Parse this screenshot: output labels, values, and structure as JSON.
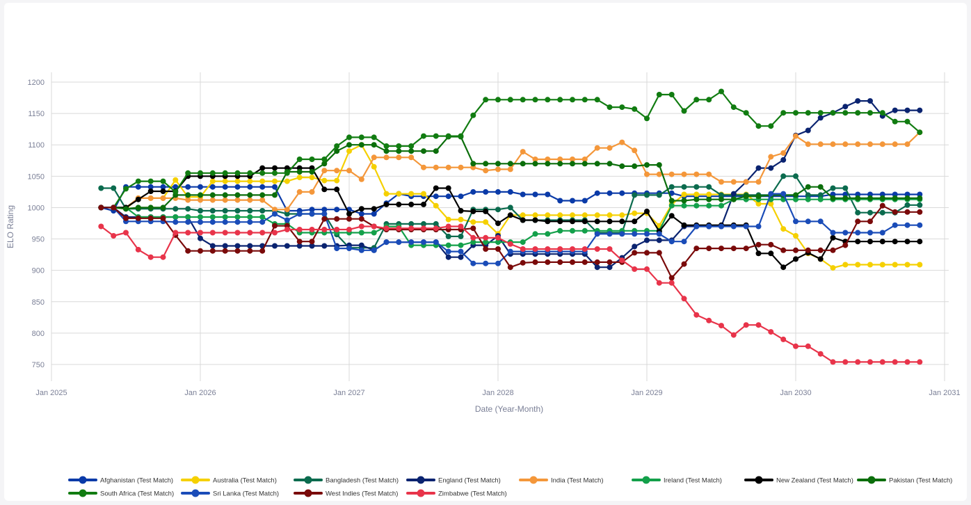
{
  "chart_data": {
    "type": "line",
    "xlabel": "Date (Year-Month)",
    "ylabel": "ELO Rating",
    "ylim": [
      725,
      1210
    ],
    "yticks": [
      750,
      800,
      850,
      900,
      950,
      1000,
      1050,
      1100,
      1150,
      1200
    ],
    "xticks": [
      {
        "label": "Jan 2025",
        "date": "2025-01"
      },
      {
        "label": "Jan 2026",
        "date": "2026-01"
      },
      {
        "label": "Jan 2027",
        "date": "2027-01"
      },
      {
        "label": "Jan 2028",
        "date": "2028-01"
      },
      {
        "label": "Jan 2029",
        "date": "2029-01"
      },
      {
        "label": "Jan 2030",
        "date": "2030-01"
      },
      {
        "label": "Jan 2031",
        "date": "2031-01"
      }
    ],
    "grid": true,
    "legend_position": "bottom",
    "x": [
      "2025-05",
      "2025-06",
      "2025-07",
      "2025-08",
      "2025-09",
      "2025-10",
      "2025-11",
      "2025-12",
      "2026-01",
      "2026-02",
      "2026-03",
      "2026-04",
      "2026-05",
      "2026-06",
      "2026-07",
      "2026-08",
      "2026-09",
      "2026-10",
      "2026-11",
      "2026-12",
      "2027-01",
      "2027-02",
      "2027-03",
      "2027-04",
      "2027-05",
      "2027-06",
      "2027-07",
      "2027-08",
      "2027-09",
      "2027-10",
      "2027-11",
      "2027-12",
      "2028-01",
      "2028-02",
      "2028-03",
      "2028-04",
      "2028-05",
      "2028-06",
      "2028-07",
      "2028-08",
      "2028-09",
      "2028-10",
      "2028-11",
      "2028-12",
      "2029-01",
      "2029-02",
      "2029-03",
      "2029-04",
      "2029-05",
      "2029-06",
      "2029-07",
      "2029-08",
      "2029-09",
      "2029-10",
      "2029-11",
      "2029-12",
      "2030-01",
      "2030-02",
      "2030-03",
      "2030-04",
      "2030-05",
      "2030-06",
      "2030-07",
      "2030-08",
      "2030-09",
      "2030-10",
      "2030-11"
    ],
    "series": [
      {
        "name": "Afghanistan (Test Match)",
        "color": "#0a3aa8",
        "values": [
          1000,
          995,
          1033,
          1033,
          1033,
          1033,
          1033,
          1033,
          1033,
          1033,
          1033,
          1033,
          1033,
          1033,
          1033,
          995,
          995,
          997,
          997,
          997,
          997,
          990,
          990,
          1007,
          1022,
          1018,
          1018,
          1018,
          1018,
          1018,
          1025,
          1025,
          1025,
          1025,
          1021,
          1021,
          1021,
          1011,
          1011,
          1011,
          1023,
          1023,
          1023,
          1023,
          1023,
          1023,
          1023,
          1018,
          1018,
          1018,
          1018,
          1018,
          1018,
          1018,
          1018,
          1018,
          1018,
          1018,
          1018,
          1021,
          1021,
          1021,
          1021,
          1021,
          1021,
          1021,
          1021
        ]
      },
      {
        "name": "Australia (Test Match)",
        "color": "#f5d000",
        "values": [
          1000,
          1000,
          998,
          1015,
          1015,
          1015,
          1044,
          1017,
          1017,
          1042,
          1042,
          1042,
          1042,
          1042,
          1042,
          1042,
          1048,
          1048,
          1043,
          1043,
          1090,
          1100,
          1065,
          1022,
          1022,
          1022,
          1022,
          1003,
          981,
          981,
          977,
          977,
          958,
          988,
          988,
          988,
          988,
          988,
          988,
          988,
          988,
          988,
          988,
          991,
          991,
          971,
          1005,
          1021,
          1021,
          1021,
          1021,
          1021,
          1021,
          1006,
          1006,
          966,
          955,
          927,
          918,
          904,
          909,
          909,
          909,
          909,
          909,
          909,
          909
        ]
      },
      {
        "name": "Bangladesh (Test Match)",
        "color": "#0b6b4e",
        "values": [
          1031,
          1031,
          998,
          998,
          998,
          998,
          998,
          998,
          995,
          995,
          995,
          995,
          995,
          995,
          995,
          990,
          990,
          990,
          990,
          957,
          936,
          936,
          936,
          974,
          974,
          974,
          974,
          974,
          954,
          954,
          997,
          997,
          997,
          1000,
          980,
          980,
          980,
          980,
          980,
          980,
          960,
          960,
          960,
          1020,
          1020,
          1020,
          1033,
          1033,
          1033,
          1033,
          1020,
          1020,
          1020,
          1020,
          1020,
          1050,
          1050,
          1020,
          1020,
          1031,
          1031,
          992,
          992,
          992,
          992,
          1004,
          1004
        ]
      },
      {
        "name": "England (Test Match)",
        "color": "#0a2370",
        "values": [
          1000,
          1000,
          985,
          985,
          985,
          985,
          985,
          985,
          951,
          939,
          939,
          939,
          939,
          939,
          939,
          939,
          939,
          939,
          939,
          939,
          940,
          940,
          932,
          945,
          945,
          945,
          945,
          945,
          921,
          921,
          940,
          940,
          955,
          926,
          926,
          926,
          926,
          926,
          926,
          926,
          905,
          905,
          920,
          938,
          948,
          948,
          948,
          970,
          970,
          970,
          970,
          1022,
          1041,
          1063,
          1063,
          1076,
          1115,
          1123,
          1143,
          1151,
          1161,
          1170,
          1170,
          1146,
          1155,
          1155,
          1155
        ]
      },
      {
        "name": "India (Test Match)",
        "color": "#f4973a",
        "values": [
          1000,
          1000,
          1000,
          1015,
          1015,
          1015,
          1015,
          1012,
          1012,
          1012,
          1012,
          1012,
          1012,
          1012,
          997,
          997,
          1025,
          1025,
          1059,
          1059,
          1059,
          1045,
          1080,
          1080,
          1080,
          1080,
          1064,
          1064,
          1064,
          1064,
          1064,
          1059,
          1061,
          1061,
          1089,
          1077,
          1077,
          1077,
          1077,
          1077,
          1095,
          1095,
          1104,
          1091,
          1053,
          1053,
          1053,
          1053,
          1053,
          1053,
          1041,
          1041,
          1041,
          1041,
          1081,
          1087,
          1114,
          1101,
          1101,
          1101,
          1101,
          1101,
          1101,
          1101,
          1101,
          1101,
          1120
        ]
      },
      {
        "name": "Ireland (Test Match)",
        "color": "#13a04a",
        "values": [
          1000,
          1000,
          1000,
          985,
          985,
          985,
          985,
          985,
          985,
          985,
          985,
          985,
          985,
          985,
          974,
          974,
          960,
          960,
          960,
          960,
          960,
          960,
          960,
          970,
          970,
          940,
          940,
          940,
          940,
          940,
          945,
          945,
          945,
          945,
          945,
          958,
          958,
          963,
          963,
          963,
          963,
          963,
          963,
          963,
          963,
          963,
          1003,
          1003,
          1003,
          1003,
          1003,
          1013,
          1013,
          1013,
          1013,
          1013,
          1013,
          1013,
          1013,
          1013,
          1013,
          1013,
          1013,
          1013,
          1013,
          1013,
          1013
        ]
      },
      {
        "name": "New Zealand (Test Match)",
        "color": "#000000",
        "values": [
          1000,
          1000,
          1000,
          1013,
          1026,
          1026,
          1026,
          1050,
          1050,
          1050,
          1050,
          1050,
          1050,
          1063,
          1063,
          1063,
          1063,
          1063,
          1029,
          1029,
          990,
          998,
          998,
          1005,
          1005,
          1005,
          1005,
          1031,
          1031,
          995,
          994,
          994,
          975,
          988,
          980,
          980,
          978,
          978,
          978,
          978,
          978,
          978,
          978,
          978,
          994,
          962,
          987,
          972,
          972,
          972,
          972,
          972,
          972,
          927,
          927,
          905,
          918,
          928,
          918,
          952,
          946,
          946,
          946,
          946,
          946,
          946,
          946
        ]
      },
      {
        "name": "Pakistan (Test Match)",
        "color": "#0b6e0b",
        "values": [
          1000,
          1000,
          998,
          1000,
          1000,
          1000,
          1020,
          1020,
          1020,
          1020,
          1020,
          1020,
          1020,
          1020,
          1020,
          1057,
          1057,
          1057,
          1070,
          1090,
          1100,
          1100,
          1100,
          1090,
          1090,
          1090,
          1090,
          1090,
          1113,
          1113,
          1070,
          1070,
          1070,
          1070,
          1070,
          1070,
          1070,
          1070,
          1070,
          1070,
          1070,
          1070,
          1066,
          1066,
          1068,
          1068,
          1011,
          1011,
          1013,
          1013,
          1013,
          1013,
          1018,
          1018,
          1020,
          1020,
          1020,
          1033,
          1033,
          1015,
          1015,
          1015,
          1015,
          1015,
          1015,
          1015,
          1015
        ]
      },
      {
        "name": "South Africa (Test Match)",
        "color": "#117c11",
        "values": [
          1000,
          1000,
          1030,
          1042,
          1042,
          1042,
          1025,
          1055,
          1055,
          1055,
          1055,
          1055,
          1055,
          1055,
          1055,
          1055,
          1077,
          1077,
          1077,
          1098,
          1112,
          1112,
          1112,
          1098,
          1098,
          1098,
          1114,
          1114,
          1114,
          1114,
          1147,
          1172,
          1172,
          1172,
          1172,
          1172,
          1172,
          1172,
          1172,
          1172,
          1172,
          1160,
          1160,
          1157,
          1142,
          1180,
          1180,
          1154,
          1172,
          1172,
          1185,
          1160,
          1151,
          1130,
          1130,
          1151,
          1151,
          1151,
          1151,
          1151,
          1151,
          1151,
          1151,
          1151,
          1137,
          1137,
          1120
        ]
      },
      {
        "name": "Sri Lanka (Test Match)",
        "color": "#1a4cb8",
        "values": [
          1000,
          1000,
          978,
          978,
          978,
          978,
          977,
          977,
          977,
          977,
          977,
          977,
          977,
          977,
          990,
          980,
          990,
          990,
          990,
          935,
          935,
          932,
          932,
          945,
          945,
          945,
          945,
          945,
          930,
          930,
          911,
          911,
          911,
          930,
          930,
          930,
          930,
          930,
          930,
          930,
          958,
          958,
          958,
          958,
          958,
          958,
          946,
          946,
          970,
          970,
          970,
          970,
          970,
          970,
          1022,
          1022,
          978,
          978,
          978,
          960,
          960,
          960,
          960,
          960,
          972,
          972,
          972
        ]
      },
      {
        "name": "West Indies (Test Match)",
        "color": "#7a0a0a",
        "values": [
          1000,
          1000,
          983,
          983,
          983,
          983,
          956,
          931,
          931,
          931,
          931,
          931,
          931,
          931,
          971,
          971,
          946,
          946,
          982,
          982,
          982,
          982,
          970,
          965,
          965,
          965,
          965,
          965,
          965,
          965,
          967,
          934,
          934,
          905,
          912,
          913,
          913,
          913,
          913,
          913,
          913,
          913,
          913,
          928,
          928,
          928,
          888,
          910,
          935,
          935,
          935,
          935,
          935,
          941,
          941,
          932,
          932,
          932,
          932,
          932,
          940,
          978,
          978,
          1003,
          993,
          993,
          993
        ]
      },
      {
        "name": "Zimbabwe (Test Match)",
        "color": "#e8344a",
        "values": [
          970,
          955,
          960,
          933,
          921,
          921,
          960,
          960,
          960,
          960,
          960,
          960,
          960,
          960,
          960,
          965,
          965,
          965,
          965,
          965,
          965,
          970,
          970,
          967,
          967,
          967,
          967,
          967,
          970,
          970,
          952,
          952,
          952,
          942,
          934,
          934,
          934,
          934,
          934,
          934,
          934,
          934,
          916,
          902,
          902,
          880,
          880,
          855,
          829,
          820,
          812,
          797,
          813,
          813,
          802,
          790,
          779,
          779,
          767,
          754,
          754,
          754,
          754,
          754,
          754,
          754,
          754
        ]
      }
    ]
  }
}
